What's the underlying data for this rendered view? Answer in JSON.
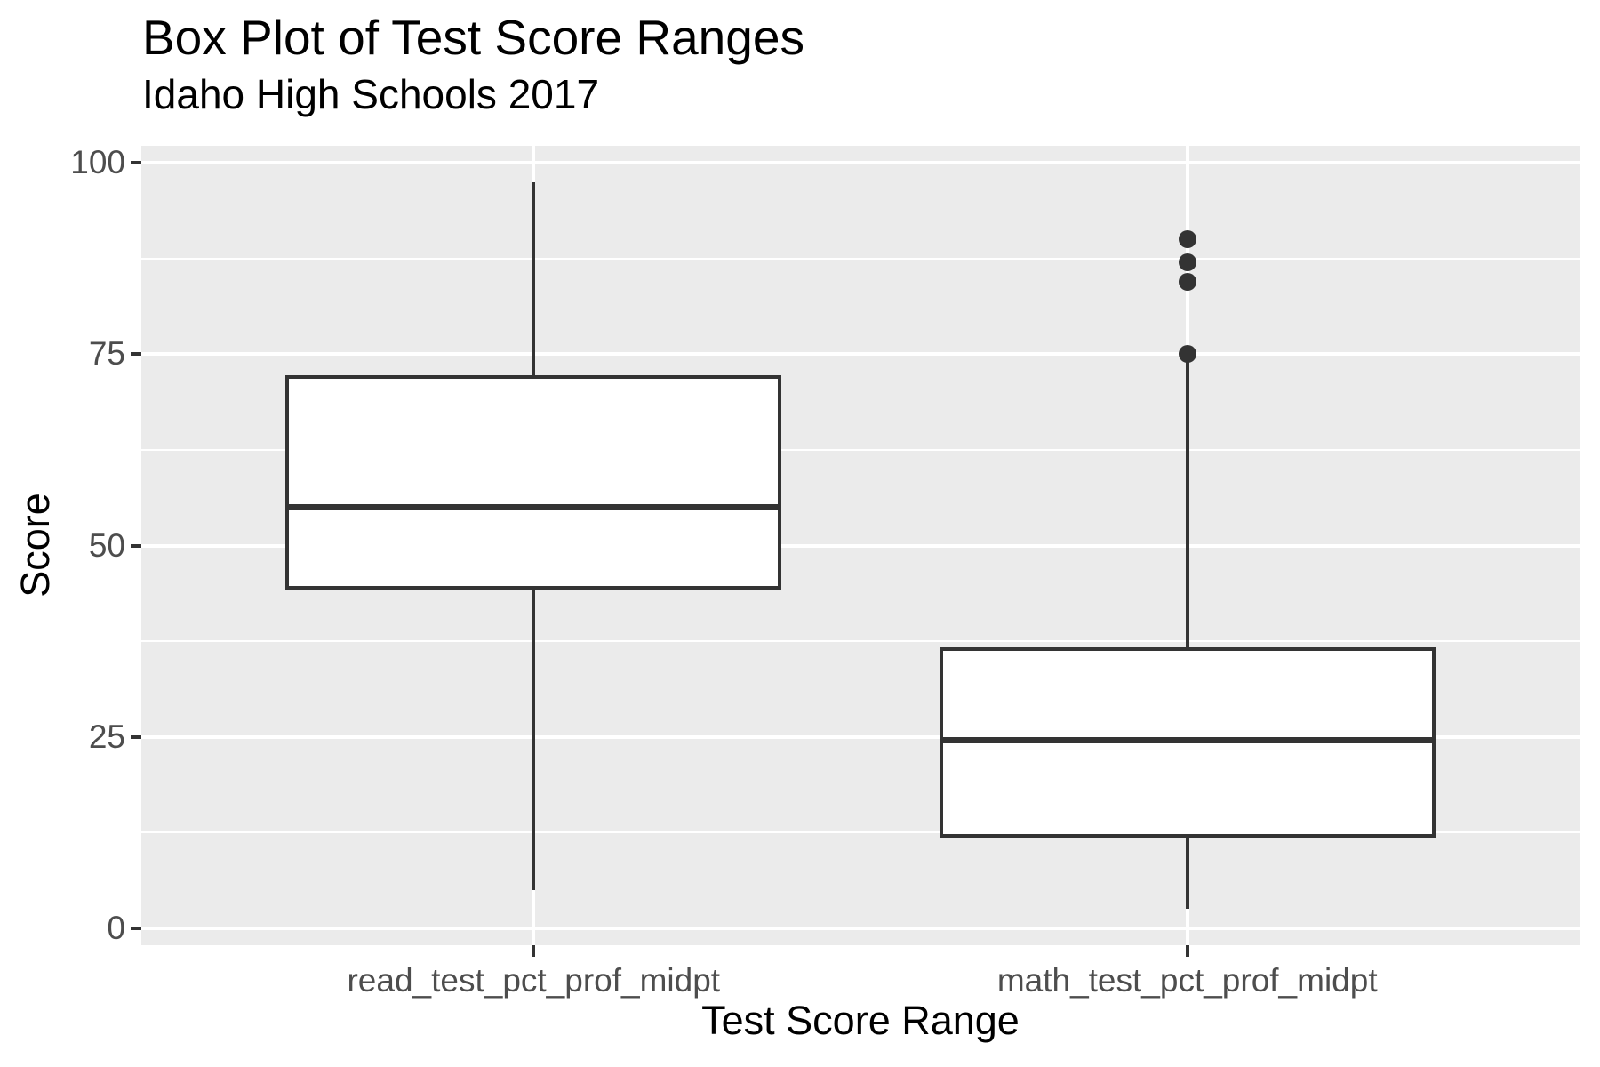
{
  "header": {
    "title": "Box Plot of Test Score Ranges",
    "subtitle": "Idaho High Schools 2017"
  },
  "colors": {
    "panel_background": "#EBEBEB",
    "gridline": "#FFFFFF",
    "box_stroke": "#333333",
    "box_fill": "#FFFFFF",
    "outlier_fill": "#333333",
    "tick_label_text": "#4D4D4D",
    "title_text": "#000000",
    "page_background": "#FFFFFF"
  },
  "chart_data": {
    "type": "boxplot",
    "title": "Box Plot of Test Score Ranges",
    "subtitle": "Idaho High Schools 2017",
    "xlabel": "Test Score Range",
    "ylabel": "Score",
    "categories": [
      "read_test_pct_prof_midpt",
      "math_test_pct_prof_midpt"
    ],
    "y_ticks": [
      0,
      25,
      50,
      75,
      100
    ],
    "y_minor_gridlines": [
      12.5,
      37.5,
      62.5,
      87.5
    ],
    "ylim": [
      -2.25,
      102.25
    ],
    "grid": true,
    "legend": false,
    "series": [
      {
        "name": "read_test_pct_prof_midpt",
        "whisker_low": 5,
        "q1": 44.5,
        "median": 55,
        "q3": 72,
        "whisker_high": 97.5,
        "outliers": []
      },
      {
        "name": "math_test_pct_prof_midpt",
        "whisker_low": 2.5,
        "q1": 12,
        "median": 24.5,
        "q3": 36.5,
        "whisker_high": 74,
        "outliers": [
          75,
          84.5,
          87,
          90
        ]
      }
    ]
  }
}
